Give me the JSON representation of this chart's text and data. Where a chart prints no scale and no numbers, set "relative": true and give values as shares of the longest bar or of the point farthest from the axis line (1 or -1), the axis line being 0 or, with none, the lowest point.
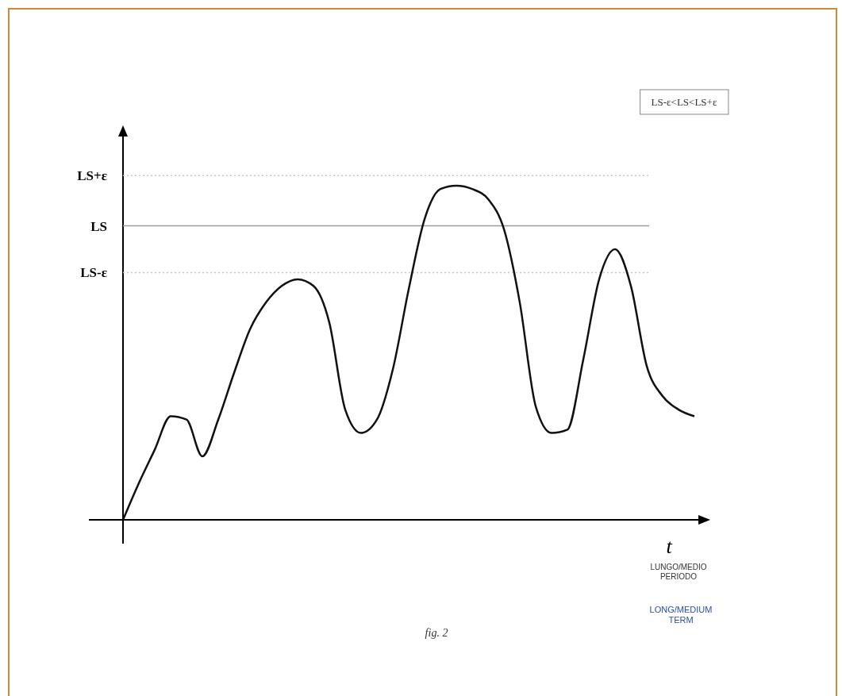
{
  "chart_data": {
    "type": "line",
    "relative": true,
    "xlabel": "t",
    "categories": [
      null,
      null,
      null,
      null,
      null,
      null,
      null,
      null,
      null,
      null,
      null,
      null,
      null,
      null,
      null,
      null,
      null,
      null,
      null,
      null,
      null,
      null,
      null,
      null,
      null,
      null,
      null,
      null,
      null,
      null,
      null,
      null,
      null,
      null,
      null,
      null,
      null
    ],
    "series": [
      {
        "color": "#111111",
        "values": [
          0,
          0.11,
          0.21,
          0.31,
          0.3,
          0.19,
          0.3,
          0.44,
          0.57,
          0.65,
          0.7,
          0.72,
          0.7,
          0.59,
          0.33,
          0.26,
          0.3,
          0.45,
          0.69,
          0.9,
          0.99,
          1,
          0.99,
          0.96,
          0.87,
          0.65,
          0.34,
          0.26,
          0.27,
          0.48,
          0.72,
          0.81,
          0.7,
          0.46,
          0.37,
          0.33,
          0.31
        ]
      }
    ],
    "ref_lines": [
      {
        "axis": "y",
        "value": 1.03,
        "label": "LS+ε",
        "color": "#c8c8c8",
        "line_style": "dotted"
      },
      {
        "axis": "y",
        "value": 0.88,
        "label": "LS",
        "color": "#9a9a9a",
        "line_style": "solid"
      },
      {
        "axis": "y",
        "value": 0.74,
        "label": "LS-ε",
        "color": "#c8c8c8",
        "line_style": "dotted"
      }
    ],
    "annotations": [
      "LS-ε<LS<LS+ε",
      "LUNGO/MEDIO PERIODO",
      "LONG/MEDIUM TERM",
      "fig. 2"
    ],
    "marker": "none",
    "line_style": "solid"
  }
}
